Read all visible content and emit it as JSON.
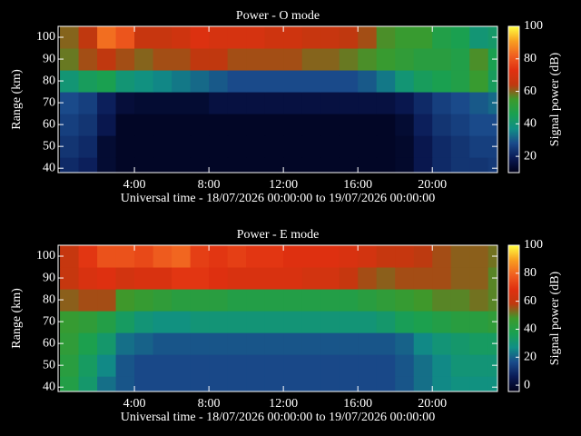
{
  "chart_data": [
    {
      "type": "heatmap",
      "title": "Power - O mode",
      "xlabel": "Universal time - 18/07/2026 00:00:00 to 19/07/2026 00:00:00",
      "ylabel": "Range (km)",
      "colorbar_label": "Signal power (dB)",
      "xlim": [
        -0.1,
        23.5
      ],
      "ylim": [
        38,
        105
      ],
      "xticks": [
        {
          "value": 4,
          "label": "4:00"
        },
        {
          "value": 8,
          "label": "8:00"
        },
        {
          "value": 12,
          "label": "12:00"
        },
        {
          "value": 16,
          "label": "16:00"
        },
        {
          "value": 20,
          "label": "20:00"
        }
      ],
      "yticks": [
        40,
        50,
        60,
        70,
        80,
        90,
        100
      ],
      "clim": [
        10,
        100
      ],
      "cticks": [
        20,
        40,
        60,
        80,
        100
      ],
      "colormap": [
        "#000018",
        "#0a1a55",
        "#1a4a8a",
        "#108f86",
        "#1aa050",
        "#3c9a2c",
        "#c0380f",
        "#e03010",
        "#f06020",
        "#f8a020",
        "#ffff40"
      ],
      "x_bins": [
        0,
        1,
        2,
        3,
        4,
        5,
        6,
        7,
        8,
        9,
        10,
        11,
        12,
        13,
        14,
        15,
        16,
        17,
        18,
        19,
        20,
        21,
        22,
        23,
        24
      ],
      "y_bins": [
        35,
        45,
        55,
        65,
        75,
        85,
        95,
        105
      ],
      "z": [
        [
          22,
          20,
          14,
          12,
          12,
          12,
          12,
          12,
          12,
          12,
          12,
          12,
          12,
          12,
          12,
          12,
          12,
          12,
          13,
          18,
          22,
          24,
          24,
          25
        ],
        [
          24,
          22,
          14,
          12,
          12,
          12,
          12,
          12,
          12,
          12,
          12,
          12,
          12,
          12,
          12,
          12,
          12,
          12,
          13,
          18,
          22,
          24,
          26,
          26
        ],
        [
          26,
          24,
          18,
          12,
          12,
          12,
          12,
          12,
          12,
          12,
          12,
          12,
          12,
          12,
          12,
          12,
          12,
          12,
          14,
          20,
          24,
          26,
          28,
          28
        ],
        [
          28,
          26,
          20,
          15,
          14,
          14,
          14,
          14,
          16,
          16,
          16,
          16,
          16,
          16,
          16,
          16,
          16,
          16,
          18,
          22,
          26,
          28,
          30,
          32
        ],
        [
          40,
          44,
          46,
          40,
          38,
          36,
          34,
          32,
          30,
          28,
          28,
          28,
          28,
          28,
          28,
          28,
          30,
          34,
          40,
          44,
          46,
          48,
          54,
          44
        ],
        [
          58,
          62,
          64,
          62,
          60,
          62,
          62,
          64,
          64,
          62,
          62,
          62,
          62,
          60,
          60,
          58,
          56,
          54,
          52,
          50,
          50,
          48,
          56,
          46
        ],
        [
          60,
          64,
          84,
          80,
          66,
          66,
          68,
          72,
          70,
          70,
          70,
          68,
          68,
          66,
          66,
          64,
          62,
          56,
          54,
          54,
          48,
          46,
          40,
          42
        ]
      ]
    },
    {
      "type": "heatmap",
      "title": "Power - E mode",
      "xlabel": "Universal time - 18/07/2026 00:00:00 to 19/07/2026 00:00:00",
      "ylabel": "Range (km)",
      "colorbar_label": "Signal power (dB)",
      "xlim": [
        -0.1,
        23.5
      ],
      "ylim": [
        38,
        105
      ],
      "xticks": [
        {
          "value": 4,
          "label": "4:00"
        },
        {
          "value": 8,
          "label": "8:00"
        },
        {
          "value": 12,
          "label": "12:00"
        },
        {
          "value": 16,
          "label": "16:00"
        },
        {
          "value": 20,
          "label": "20:00"
        }
      ],
      "yticks": [
        40,
        50,
        60,
        70,
        80,
        90,
        100
      ],
      "clim": [
        -4.5,
        100
      ],
      "cticks": [
        0,
        20,
        40,
        60,
        80,
        100
      ],
      "colormap": [
        "#000018",
        "#0a1a55",
        "#1a4a8a",
        "#108f86",
        "#1aa050",
        "#3c9a2c",
        "#c0380f",
        "#e03010",
        "#f06020",
        "#f8a020",
        "#ffff40"
      ],
      "x_bins": [
        0,
        1,
        2,
        3,
        4,
        5,
        6,
        7,
        8,
        9,
        10,
        11,
        12,
        13,
        14,
        15,
        16,
        17,
        18,
        19,
        20,
        21,
        22,
        23,
        24
      ],
      "y_bins": [
        35,
        45,
        55,
        65,
        75,
        85,
        95,
        105
      ],
      "z": [
        [
          40,
          32,
          22,
          18,
          16,
          16,
          16,
          16,
          16,
          16,
          16,
          16,
          16,
          16,
          16,
          16,
          16,
          16,
          18,
          22,
          26,
          28,
          28,
          28
        ],
        [
          42,
          34,
          26,
          18,
          16,
          16,
          16,
          16,
          16,
          16,
          16,
          16,
          16,
          16,
          16,
          16,
          16,
          16,
          18,
          22,
          26,
          30,
          30,
          30
        ],
        [
          44,
          38,
          32,
          22,
          20,
          18,
          18,
          18,
          18,
          18,
          18,
          18,
          18,
          18,
          18,
          18,
          18,
          18,
          20,
          26,
          30,
          32,
          34,
          34
        ],
        [
          46,
          44,
          40,
          34,
          30,
          28,
          28,
          30,
          30,
          30,
          30,
          30,
          30,
          30,
          30,
          30,
          30,
          32,
          36,
          38,
          40,
          42,
          42,
          44
        ],
        [
          54,
          56,
          56,
          48,
          46,
          44,
          42,
          42,
          42,
          40,
          40,
          40,
          40,
          40,
          40,
          40,
          42,
          44,
          46,
          48,
          50,
          50,
          52,
          50
        ],
        [
          60,
          66,
          68,
          64,
          66,
          66,
          70,
          70,
          68,
          66,
          66,
          66,
          66,
          64,
          64,
          60,
          56,
          54,
          56,
          56,
          56,
          54,
          54,
          50
        ],
        [
          60,
          70,
          76,
          76,
          74,
          78,
          80,
          72,
          70,
          72,
          70,
          70,
          68,
          68,
          68,
          66,
          64,
          60,
          60,
          58,
          56,
          54,
          54,
          52
        ]
      ]
    }
  ]
}
